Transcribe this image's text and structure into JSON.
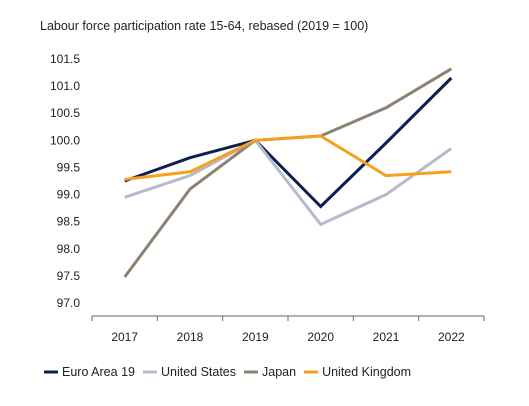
{
  "chart_data": {
    "type": "line",
    "title": "Labour force participation rate 15-64, rebased (2019 = 100)",
    "xlabel": "",
    "ylabel": "",
    "categories": [
      "2017",
      "2018",
      "2019",
      "2020",
      "2021",
      "2022"
    ],
    "ylim": [
      97.0,
      101.5
    ],
    "yticks": [
      "97.0",
      "97.5",
      "98.0",
      "98.5",
      "99.0",
      "99.5",
      "100.0",
      "100.5",
      "101.0",
      "101.5"
    ],
    "grid": false,
    "legend_position": "bottom",
    "series": [
      {
        "name": "Euro Area 19",
        "color": "#0d1f4f",
        "values": [
          99.25,
          99.68,
          100.0,
          98.78,
          99.95,
          101.15
        ]
      },
      {
        "name": "United States",
        "color": "#b4bccb",
        "values": [
          98.95,
          99.35,
          100.0,
          98.45,
          99.0,
          99.85
        ]
      },
      {
        "name": "Japan",
        "color": "#8d8172",
        "values": [
          97.48,
          99.1,
          100.0,
          100.08,
          100.6,
          101.32
        ]
      },
      {
        "name": "United Kingdom",
        "color": "#f5a01e",
        "values": [
          99.28,
          99.42,
          100.0,
          100.08,
          99.35,
          99.42
        ]
      }
    ]
  }
}
